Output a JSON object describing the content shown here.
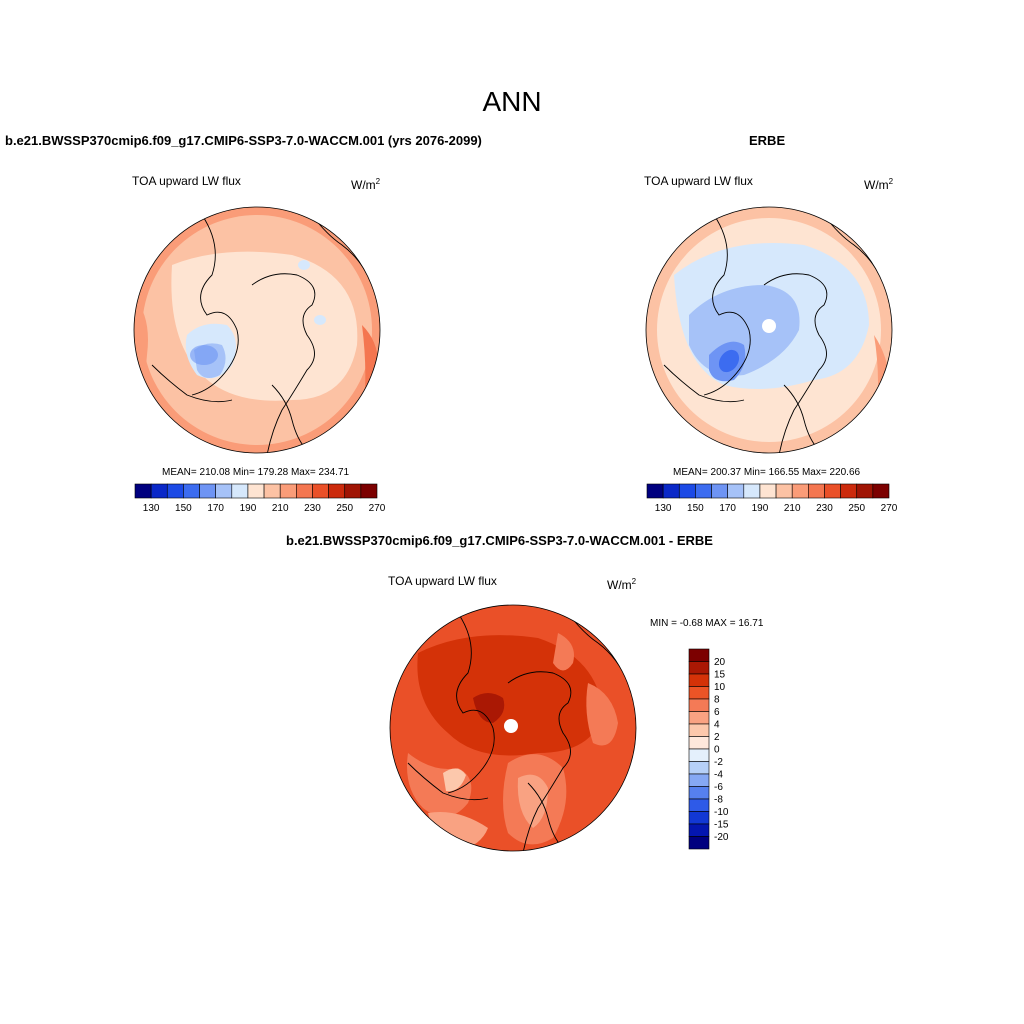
{
  "season": "ANN",
  "panels": [
    {
      "case": "b.e21.BWSSP370cmip6.f09_g17.CMIP6-SSP3-7.0-WACCM.001 (yrs 2076-2099)",
      "variable": "TOA upward LW flux",
      "units": "W/m",
      "units_exp": "2",
      "stats": "MEAN= 210.08  Min= 179.28  Max= 234.71"
    },
    {
      "case": "ERBE",
      "variable": "TOA upward LW flux",
      "units": "W/m",
      "units_exp": "2",
      "stats": "MEAN= 200.37  Min= 166.55  Max= 220.66"
    },
    {
      "case": "b.e21.BWSSP370cmip6.f09_g17.CMIP6-SSP3-7.0-WACCM.001 - ERBE",
      "variable": "TOA upward LW flux",
      "units": "W/m",
      "units_exp": "2",
      "stats": "MIN =  -0.68 MAX =  16.71"
    }
  ],
  "colorbar_horizontal": {
    "colors": [
      "#00007f",
      "#0a28c8",
      "#1c4ae6",
      "#3c6cf0",
      "#6e94f4",
      "#a6c2f8",
      "#d6e8fc",
      "#fee4d2",
      "#fcc2a4",
      "#fa9c78",
      "#f47650",
      "#ea5028",
      "#cc2a0c",
      "#a01404",
      "#7c0000"
    ],
    "tick_labels": [
      "130",
      "150",
      "170",
      "190",
      "210",
      "230",
      "250",
      "270"
    ]
  },
  "colorbar_vertical": {
    "colors": [
      "#7c0000",
      "#aa1804",
      "#d43208",
      "#ec5426",
      "#f47a56",
      "#f9a282",
      "#fcc8ac",
      "#fee8dc",
      "#e4f0fc",
      "#b6d0f8",
      "#86a8f4",
      "#5680ee",
      "#2e5ae8",
      "#1238d4",
      "#0416b0",
      "#00007f"
    ],
    "tick_labels": [
      "20",
      "15",
      "10",
      "8",
      "6",
      "4",
      "2",
      "0",
      "-2",
      "-4",
      "-6",
      "-8",
      "-10",
      "-15",
      "-20"
    ]
  }
}
